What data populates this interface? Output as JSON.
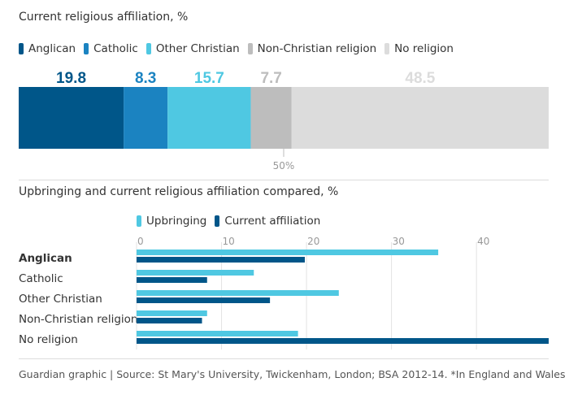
{
  "chart_data": [
    {
      "type": "bar",
      "orientation": "horizontal-stacked",
      "title": "Current religious affiliation, %",
      "categories": [
        "Anglican",
        "Catholic",
        "Other Christian",
        "Non-Christian religion",
        "No religion"
      ],
      "values": [
        19.8,
        8.3,
        15.7,
        7.7,
        48.5
      ],
      "value_labels": [
        "19.8",
        "8.3",
        "15.7",
        "7.7",
        "48.5"
      ],
      "colors": [
        "#005689",
        "#1b83c1",
        "#4fc8e2",
        "#bdbdbd",
        "#dcdcdc"
      ],
      "label_colors": [
        "#005689",
        "#1b83c1",
        "#4fc8e2",
        "#bdbdbd",
        "#dcdcdc"
      ],
      "midline_label": "50%",
      "midline_value": 50,
      "xlim": [
        0,
        100
      ]
    },
    {
      "type": "bar",
      "orientation": "horizontal-grouped",
      "title": "Upbringing and current religious affiliation compared, %",
      "categories": [
        "Anglican",
        "Catholic",
        "Other Christian",
        "Non-Christian religion",
        "No religion"
      ],
      "bold_category": "Anglican",
      "series": [
        {
          "name": "Upbringing",
          "color": "#4fc8e2",
          "values": [
            35.5,
            13.8,
            23.8,
            8.3,
            19
          ]
        },
        {
          "name": "Current affiliation",
          "color": "#005689",
          "values": [
            19.8,
            8.3,
            15.7,
            7.7,
            48.5
          ]
        }
      ],
      "xticks": [
        0,
        10,
        20,
        30,
        40
      ],
      "xtick_labels": [
        "0",
        "10",
        "20",
        "30",
        "40"
      ],
      "xlim": [
        0,
        48.5
      ]
    }
  ],
  "legend1": [
    {
      "label": "Anglican",
      "color": "#005689"
    },
    {
      "label": "Catholic",
      "color": "#1b83c1"
    },
    {
      "label": "Other Christian",
      "color": "#4fc8e2"
    },
    {
      "label": "Non-Christian religion",
      "color": "#bdbdbd"
    },
    {
      "label": "No religion",
      "color": "#dcdcdc"
    }
  ],
  "legend2": [
    {
      "label": "Upbringing",
      "color": "#4fc8e2"
    },
    {
      "label": "Current affiliation",
      "color": "#005689"
    }
  ],
  "footer": "Guardian graphic | Source: St Mary's University, Twickenham, London; BSA 2012-14. *In England and Wales"
}
